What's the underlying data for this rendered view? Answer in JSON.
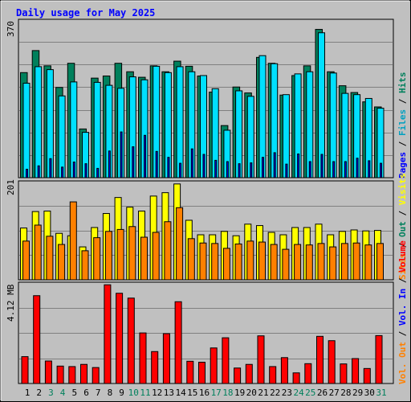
{
  "chart_data": [
    {
      "type": "bar",
      "title": "Daily usage for May 2025",
      "panel": "hits-files-pages",
      "ymax_label": "370",
      "ylim": [
        0,
        370
      ],
      "grid": true,
      "categories": [
        "1",
        "2",
        "3",
        "4",
        "5",
        "6",
        "7",
        "8",
        "9",
        "10",
        "11",
        "12",
        "13",
        "14",
        "15",
        "16",
        "17",
        "18",
        "19",
        "20",
        "21",
        "22",
        "23",
        "24",
        "25",
        "26",
        "27",
        "28",
        "29",
        "30",
        "31"
      ],
      "weekend_days": [
        "3",
        "4",
        "10",
        "11",
        "17",
        "18",
        "24",
        "25",
        "31"
      ],
      "legend": {
        "hits": "Hits",
        "files": "Files",
        "pages": "Pages",
        "sep1": " / ",
        "sep2": " / "
      },
      "series": [
        {
          "name": "Hits",
          "color": "#00805c",
          "values": [
            248,
            300,
            264,
            213,
            270,
            115,
            235,
            240,
            270,
            250,
            237,
            264,
            250,
            275,
            263,
            240,
            202,
            123,
            214,
            200,
            284,
            270,
            195,
            241,
            264,
            350,
            250,
            217,
            201,
            179,
            167
          ]
        },
        {
          "name": "Files",
          "color": "#00e0ff",
          "values": [
            223,
            262,
            255,
            193,
            226,
            107,
            225,
            218,
            211,
            238,
            231,
            263,
            248,
            262,
            250,
            241,
            210,
            112,
            205,
            192,
            288,
            269,
            196,
            245,
            250,
            342,
            247,
            199,
            196,
            187,
            164
          ]
        },
        {
          "name": "Pages",
          "color": "#0000ff",
          "values": [
            20,
            28,
            45,
            25,
            37,
            33,
            22,
            63,
            108,
            73,
            100,
            62,
            48,
            34,
            68,
            55,
            41,
            38,
            33,
            35,
            48,
            59,
            32,
            56,
            38,
            55,
            38,
            38,
            46,
            40,
            34
          ]
        }
      ]
    },
    {
      "type": "bar",
      "panel": "visits-sites",
      "ymax_label": "201",
      "ylim": [
        0,
        201
      ],
      "grid": true,
      "legend": {
        "visits": "Visits",
        "sites": "Sites",
        "out": "Out",
        "sep1": " / ",
        "sep2": " / "
      },
      "series": [
        {
          "name": "Visits",
          "color": "#ffff00",
          "values": [
            107,
            141,
            142,
            96,
            91,
            68,
            108,
            137,
            170,
            150,
            142,
            173,
            180,
            198,
            123,
            93,
            93,
            100,
            91,
            115,
            112,
            98,
            93,
            108,
            108,
            115,
            93,
            100,
            103,
            101,
            102
          ]
        },
        {
          "name": "Sites",
          "color": "#ff8000",
          "values": [
            80,
            113,
            90,
            73,
            161,
            60,
            87,
            100,
            104,
            110,
            88,
            98,
            120,
            149,
            85,
            76,
            75,
            65,
            74,
            80,
            78,
            73,
            63,
            73,
            72,
            75,
            68,
            75,
            76,
            72,
            75
          ]
        }
      ]
    },
    {
      "type": "bar",
      "panel": "volume",
      "ymax_label": "4.12 MB",
      "ylim": [
        0,
        4.12
      ],
      "grid": true,
      "legend": {
        "volume": "Volume",
        "in": "Vol. In",
        "out": "Vol. Out",
        "sep1": " / ",
        "sep2": " / "
      },
      "series": [
        {
          "name": "Volume",
          "color": "#ff0000",
          "values": [
            1.11,
            3.63,
            0.93,
            0.72,
            0.7,
            0.79,
            0.66,
            4.08,
            3.73,
            3.53,
            2.09,
            1.32,
            2.06,
            3.38,
            0.92,
            0.88,
            1.47,
            1.89,
            0.64,
            0.79,
            1.97,
            0.7,
            1.07,
            0.44,
            0.82,
            1.95,
            1.77,
            0.81,
            1.03,
            0.62,
            1.98
          ]
        }
      ]
    }
  ]
}
